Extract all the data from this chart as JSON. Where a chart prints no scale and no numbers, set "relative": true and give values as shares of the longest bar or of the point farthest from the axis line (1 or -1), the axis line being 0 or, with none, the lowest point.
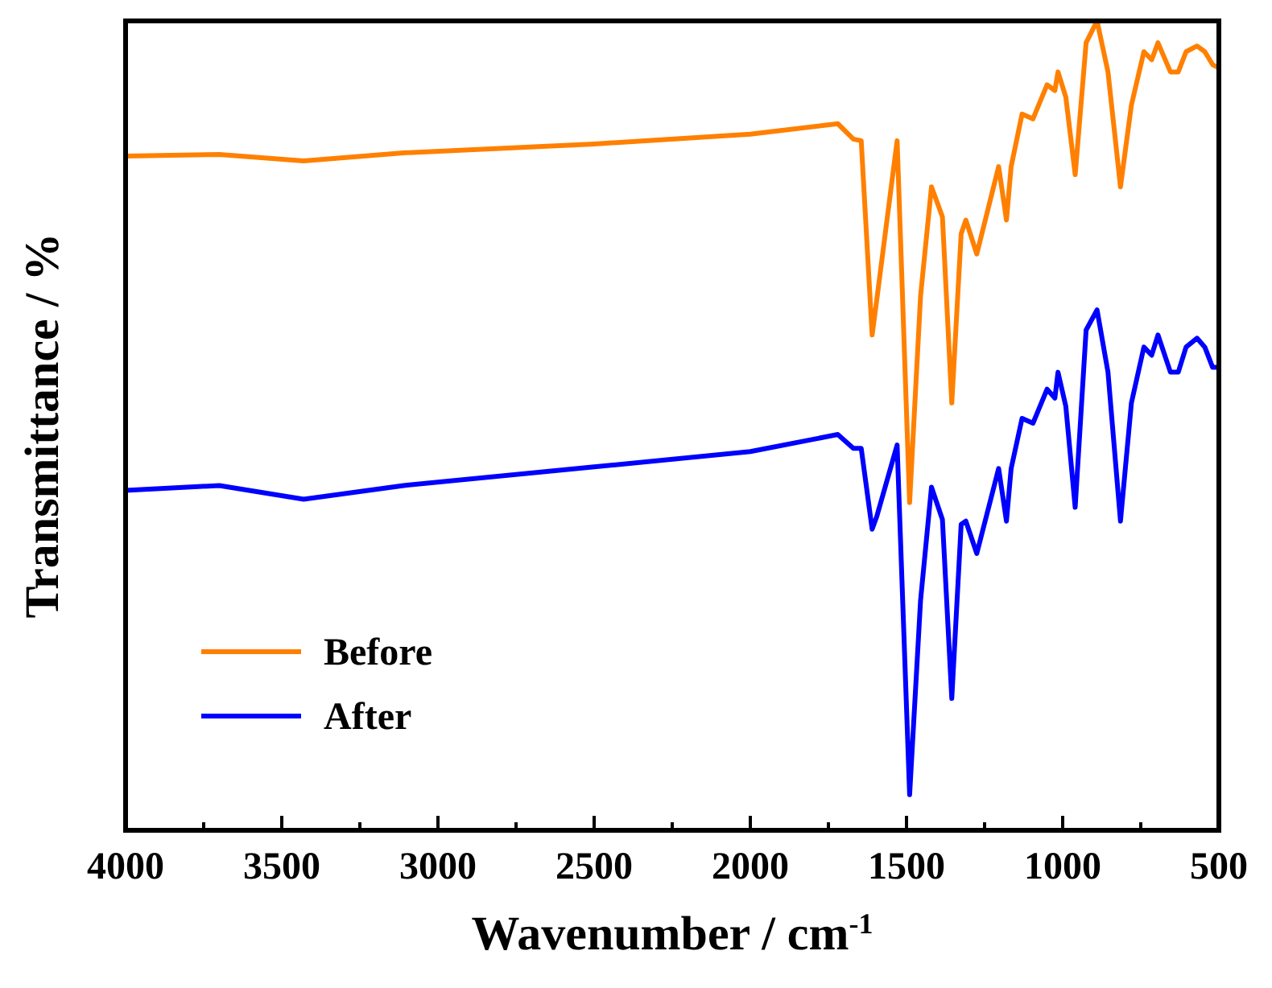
{
  "chart_data": {
    "type": "line",
    "xlabel": "Wavenumber / cm$^{-1}$",
    "ylabel": "Transmittance / %",
    "relative": true,
    "legend": "bottom left",
    "grid": false,
    "marker": "none",
    "line_style": "solid",
    "xlim": [
      4000,
      500
    ],
    "xticks": [
      4000,
      {
        "value": 3750,
        "label": null
      },
      3500,
      {
        "value": 3250,
        "label": null
      },
      3000,
      {
        "value": 2750,
        "label": null
      },
      2500,
      {
        "value": 2250,
        "label": null
      },
      2000,
      {
        "value": 1750,
        "label": null
      },
      1500,
      {
        "value": 1250,
        "label": null
      },
      1000,
      {
        "value": 750,
        "label": null
      },
      500
    ],
    "x": [
      4000,
      3700,
      3430,
      3110,
      2500,
      2000,
      1720,
      1670,
      1645,
      1610,
      1595,
      1530,
      1490,
      1455,
      1420,
      1385,
      1355,
      1325,
      1310,
      1275,
      1205,
      1180,
      1165,
      1130,
      1095,
      1050,
      1025,
      1015,
      990,
      960,
      925,
      890,
      855,
      815,
      780,
      740,
      715,
      695,
      655,
      630,
      605,
      570,
      545,
      520,
      500
    ],
    "series": [
      {
        "name": "Before",
        "color": "#ff8000",
        "values": [
          0.833,
          0.835,
          0.827,
          0.837,
          0.848,
          0.86,
          0.873,
          0.854,
          0.852,
          0.612,
          0.656,
          0.852,
          0.405,
          0.66,
          0.795,
          0.758,
          0.528,
          0.737,
          0.754,
          0.712,
          0.82,
          0.754,
          0.82,
          0.885,
          0.879,
          0.921,
          0.914,
          0.937,
          0.906,
          0.81,
          0.973,
          1,
          0.937,
          0.795,
          0.896,
          0.962,
          0.952,
          0.973,
          0.937,
          0.937,
          0.962,
          0.969,
          0.962,
          0.946,
          0.942
        ]
      },
      {
        "name": "After",
        "color": "#0000ff",
        "values": [
          0.42,
          0.426,
          0.409,
          0.426,
          0.449,
          0.468,
          0.489,
          0.472,
          0.472,
          0.372,
          0.388,
          0.476,
          0.044,
          0.284,
          0.424,
          0.384,
          0.163,
          0.378,
          0.382,
          0.342,
          0.447,
          0.382,
          0.447,
          0.509,
          0.503,
          0.545,
          0.534,
          0.566,
          0.524,
          0.399,
          0.618,
          0.643,
          0.566,
          0.382,
          0.528,
          0.597,
          0.587,
          0.612,
          0.566,
          0.566,
          0.597,
          0.608,
          0.597,
          0.572,
          0.572
        ]
      }
    ]
  }
}
